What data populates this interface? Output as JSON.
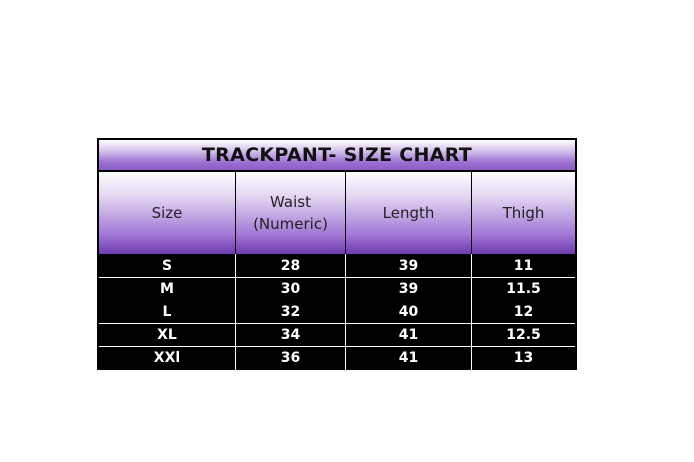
{
  "title": "TRACKPANT- SIZE CHART",
  "headers": [
    "Size",
    "Waist\n(Numeric)",
    "Length",
    "Thigh"
  ],
  "header_lines": {
    "waist_1": "Waist",
    "waist_2": "(Numeric)"
  },
  "rows": [
    [
      "S",
      "28",
      "39",
      "11"
    ],
    [
      "M",
      "30",
      "39",
      "11.5"
    ],
    [
      "L",
      "32",
      "40",
      "12"
    ],
    [
      "XL",
      "34",
      "41",
      "12.5"
    ],
    [
      "XXl",
      "36",
      "41",
      "13"
    ]
  ],
  "colors": {
    "header_purple": "#8a5cc6",
    "body_bg": "#000000",
    "body_text": "#ffffff"
  }
}
